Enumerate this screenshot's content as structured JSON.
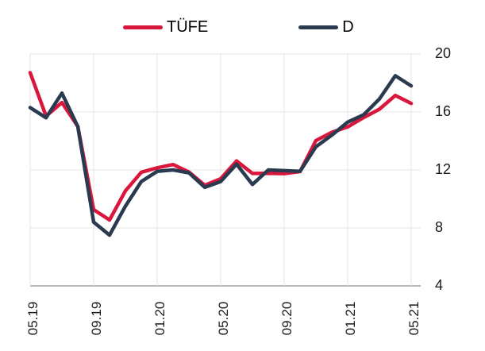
{
  "chart": {
    "background": "#ffffff",
    "y_axis": {
      "side": "right",
      "ticks": [
        "20",
        "16",
        "12",
        "8",
        "4"
      ],
      "tick_values": [
        20,
        16,
        12,
        8,
        4
      ]
    },
    "x_axis": {
      "tick_labels": [
        "05.19",
        "09.19",
        "01.20",
        "05.20",
        "09.20",
        "01.21",
        "05.21"
      ],
      "label_rotation_degrees": -90
    }
  },
  "chart_data": {
    "type": "line",
    "title": "",
    "xlabel": "",
    "ylabel": "",
    "ylim": [
      4,
      20
    ],
    "grid": true,
    "grid_color": "#e4e4e4",
    "axis_line_color": "#b9b9b9",
    "legend_position": "top",
    "x": [
      "05.19",
      "06.19",
      "07.19",
      "08.19",
      "09.19",
      "10.19",
      "11.19",
      "12.19",
      "01.20",
      "02.20",
      "03.20",
      "04.20",
      "05.20",
      "06.20",
      "07.20",
      "08.20",
      "09.20",
      "10.20",
      "11.20",
      "12.20",
      "01.21",
      "02.21",
      "03.21",
      "04.21",
      "05.21"
    ],
    "series": [
      {
        "name": "TÜFE",
        "color": "#d9173d",
        "values": [
          18.71,
          15.72,
          16.65,
          15.01,
          9.26,
          8.55,
          10.56,
          11.84,
          12.15,
          12.37,
          11.86,
          10.94,
          11.39,
          12.62,
          11.76,
          11.77,
          11.75,
          11.89,
          14.03,
          14.6,
          14.97,
          15.61,
          16.19,
          17.14,
          16.59
        ]
      },
      {
        "name": "D",
        "color": "#2a3b4f",
        "values": [
          16.3,
          15.6,
          17.3,
          15.0,
          8.4,
          7.5,
          9.5,
          11.2,
          11.9,
          12.0,
          11.8,
          10.8,
          11.2,
          12.4,
          11.0,
          12.0,
          11.95,
          11.9,
          13.6,
          14.4,
          15.3,
          15.8,
          16.9,
          18.5,
          17.8
        ]
      }
    ]
  }
}
